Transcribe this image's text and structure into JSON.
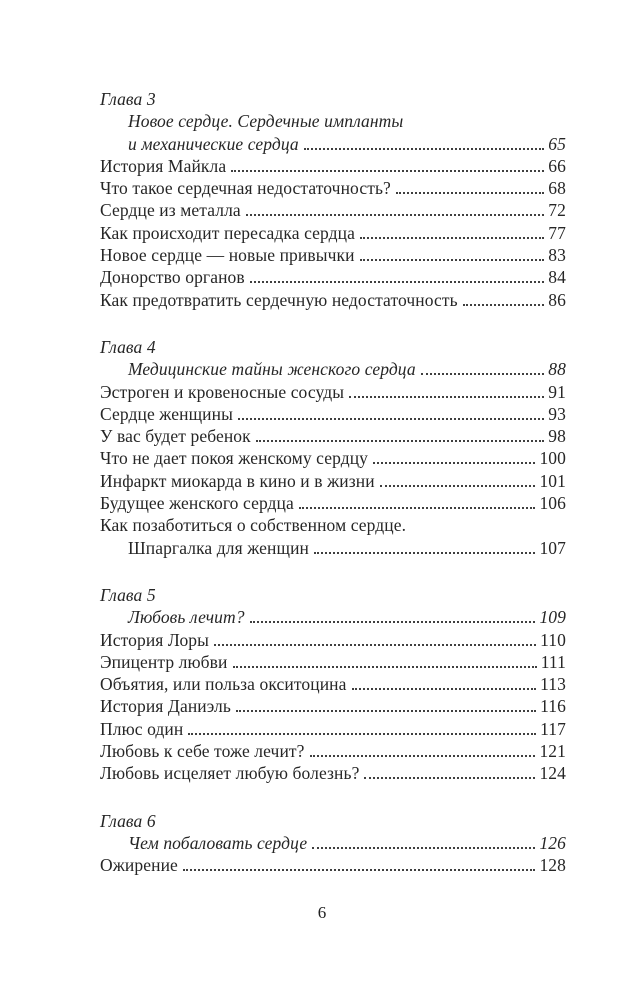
{
  "colors": {
    "background": "#ffffff",
    "text": "#262626",
    "leader_dots": "#3f3f3f"
  },
  "folio": {
    "page_number": "6"
  },
  "toc": {
    "chapters": [
      {
        "heading": "Глава 3",
        "lines": [
          {
            "text": "Новое сердце. Сердечные импланты",
            "page": "",
            "italic": true,
            "indent": 1
          },
          {
            "text": "и механические сердца",
            "page": "65",
            "italic": true,
            "indent": 1
          },
          {
            "text": "История Майкла",
            "page": "66",
            "italic": false,
            "indent": 0
          },
          {
            "text": "Что такое сердечная недостаточность?",
            "page": "68",
            "italic": false,
            "indent": 0
          },
          {
            "text": "Сердце из металла",
            "page": "72",
            "italic": false,
            "indent": 0
          },
          {
            "text": "Как происходит пересадка сердца",
            "page": "77",
            "italic": false,
            "indent": 0
          },
          {
            "text": "Новое сердце — новые привычки",
            "page": "83",
            "italic": false,
            "indent": 0
          },
          {
            "text": "Донорство органов",
            "page": "84",
            "italic": false,
            "indent": 0
          },
          {
            "text": "Как предотвратить сердечную недостаточность",
            "page": "86",
            "italic": false,
            "indent": 0
          }
        ]
      },
      {
        "heading": "Глава 4",
        "lines": [
          {
            "text": "Медицинские тайны женского сердца",
            "page": "88",
            "italic": true,
            "indent": 1
          },
          {
            "text": "Эстроген и кровеносные сосуды",
            "page": "91",
            "italic": false,
            "indent": 0
          },
          {
            "text": "Сердце женщины",
            "page": "93",
            "italic": false,
            "indent": 0
          },
          {
            "text": "У вас будет ребенок",
            "page": "98",
            "italic": false,
            "indent": 0
          },
          {
            "text": "Что не дает покоя женскому сердцу",
            "page": "100",
            "italic": false,
            "indent": 0
          },
          {
            "text": "Инфаркт миокарда в кино и в жизни",
            "page": "101",
            "italic": false,
            "indent": 0
          },
          {
            "text": "Будущее женского сердца",
            "page": "106",
            "italic": false,
            "indent": 0
          },
          {
            "text": "Как позаботиться о собственном сердце.",
            "page": "",
            "italic": false,
            "indent": 0
          },
          {
            "text": "Шпаргалка для женщин",
            "page": "107",
            "italic": false,
            "indent": 1
          }
        ]
      },
      {
        "heading": "Глава 5",
        "lines": [
          {
            "text": "Любовь лечит?",
            "page": "109",
            "italic": true,
            "indent": 1
          },
          {
            "text": "История Лоры",
            "page": "110",
            "italic": false,
            "indent": 0
          },
          {
            "text": "Эпицентр любви",
            "page": "111",
            "italic": false,
            "indent": 0
          },
          {
            "text": "Объятия, или польза окситоцина",
            "page": "113",
            "italic": false,
            "indent": 0
          },
          {
            "text": "История Даниэль",
            "page": "116",
            "italic": false,
            "indent": 0
          },
          {
            "text": "Плюс один",
            "page": "117",
            "italic": false,
            "indent": 0
          },
          {
            "text": "Любовь к себе тоже лечит?",
            "page": "121",
            "italic": false,
            "indent": 0
          },
          {
            "text": "Любовь исцеляет любую болезнь?",
            "page": "124",
            "italic": false,
            "indent": 0
          }
        ]
      },
      {
        "heading": "Глава 6",
        "lines": [
          {
            "text": "Чем побаловать сердце",
            "page": "126",
            "italic": true,
            "indent": 1
          },
          {
            "text": "Ожирение",
            "page": "128",
            "italic": false,
            "indent": 0
          }
        ]
      }
    ]
  }
}
